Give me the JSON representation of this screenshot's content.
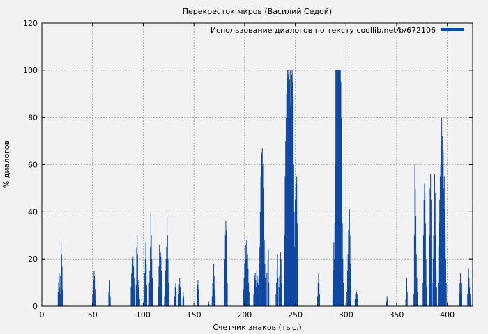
{
  "chart_data": {
    "type": "bar",
    "title": "Перекресток миров (Василий Седой)",
    "xlabel": "Счетчик знаков (тыс.)",
    "ylabel": "% диалогов",
    "xlim": [
      0,
      425
    ],
    "ylim": [
      0,
      120
    ],
    "xticks": [
      0,
      50,
      100,
      150,
      200,
      250,
      300,
      350,
      400
    ],
    "yticks": [
      0,
      20,
      40,
      60,
      80,
      100,
      120
    ],
    "grid": true,
    "legend_position": "top-right",
    "series_color": "#0d47a1",
    "series": [
      {
        "name": "Использование диалогов по тексту coollib.net/b/672106",
        "points": [
          [
            16,
            6
          ],
          [
            16.5,
            10
          ],
          [
            17,
            14
          ],
          [
            17.5,
            8
          ],
          [
            18,
            13
          ],
          [
            18.5,
            5
          ],
          [
            19,
            27
          ],
          [
            19.5,
            22
          ],
          [
            20,
            17
          ],
          [
            20.5,
            7
          ],
          [
            50,
            5
          ],
          [
            51,
            11
          ],
          [
            51.5,
            15
          ],
          [
            52,
            13
          ],
          [
            52.5,
            7
          ],
          [
            53,
            3
          ],
          [
            66,
            6
          ],
          [
            66.5,
            9
          ],
          [
            67,
            11
          ],
          [
            67.5,
            4
          ],
          [
            88,
            8
          ],
          [
            88.5,
            14
          ],
          [
            89,
            18
          ],
          [
            89.5,
            20
          ],
          [
            90,
            21
          ],
          [
            90.5,
            17
          ],
          [
            91,
            12
          ],
          [
            91.5,
            7
          ],
          [
            93,
            9
          ],
          [
            93.5,
            25
          ],
          [
            94,
            30
          ],
          [
            94.5,
            22
          ],
          [
            95,
            11
          ],
          [
            95.5,
            8
          ],
          [
            96,
            5
          ],
          [
            96.5,
            3
          ],
          [
            101,
            6
          ],
          [
            101.5,
            14
          ],
          [
            102,
            20
          ],
          [
            102.5,
            27
          ],
          [
            103,
            18
          ],
          [
            103.5,
            9
          ],
          [
            106,
            10
          ],
          [
            106.5,
            15
          ],
          [
            107,
            25
          ],
          [
            107.5,
            40
          ],
          [
            108,
            30
          ],
          [
            108.5,
            20
          ],
          [
            109,
            12
          ],
          [
            115,
            8
          ],
          [
            115.5,
            17
          ],
          [
            116,
            26
          ],
          [
            116.5,
            25
          ],
          [
            117,
            23
          ],
          [
            117.5,
            21
          ],
          [
            118,
            15
          ],
          [
            118.5,
            8
          ],
          [
            121,
            4
          ],
          [
            121.5,
            10
          ],
          [
            122,
            15
          ],
          [
            122.5,
            20
          ],
          [
            123,
            25
          ],
          [
            123.5,
            38
          ],
          [
            124,
            30
          ],
          [
            124.5,
            20
          ],
          [
            125,
            10
          ],
          [
            131,
            4
          ],
          [
            131.5,
            8
          ],
          [
            132,
            10
          ],
          [
            132.5,
            6
          ],
          [
            135,
            5
          ],
          [
            135.5,
            9
          ],
          [
            136,
            12
          ],
          [
            136.5,
            8
          ],
          [
            137,
            5
          ],
          [
            139,
            3
          ],
          [
            139.5,
            6
          ],
          [
            140,
            4
          ],
          [
            153,
            5
          ],
          [
            153.5,
            9
          ],
          [
            154,
            11
          ],
          [
            154.5,
            7
          ],
          [
            155,
            4
          ],
          [
            164,
            1
          ],
          [
            164.5,
            2
          ],
          [
            165,
            1
          ],
          [
            168,
            4
          ],
          [
            168.5,
            10
          ],
          [
            169,
            15
          ],
          [
            169.5,
            18
          ],
          [
            170,
            13
          ],
          [
            170.5,
            7
          ],
          [
            171,
            4
          ],
          [
            180,
            8
          ],
          [
            180.5,
            20
          ],
          [
            181,
            30
          ],
          [
            181.5,
            36
          ],
          [
            182,
            32
          ],
          [
            182.5,
            20
          ],
          [
            183,
            10
          ],
          [
            199,
            7
          ],
          [
            199.5,
            12
          ],
          [
            200,
            18
          ],
          [
            200.5,
            22
          ],
          [
            201,
            26
          ],
          [
            201.5,
            20
          ],
          [
            202,
            28
          ],
          [
            202.5,
            30
          ],
          [
            203,
            22
          ],
          [
            203.5,
            16
          ],
          [
            204,
            10
          ],
          [
            204.5,
            6
          ],
          [
            209,
            5
          ],
          [
            209.5,
            10
          ],
          [
            210,
            13
          ],
          [
            210.5,
            14
          ],
          [
            211,
            11
          ],
          [
            211.5,
            8
          ],
          [
            212,
            15
          ],
          [
            212.5,
            13
          ],
          [
            213,
            10
          ],
          [
            213.5,
            9
          ],
          [
            214,
            12
          ],
          [
            214.5,
            18
          ],
          [
            215,
            25
          ],
          [
            215.5,
            40
          ],
          [
            216,
            55
          ],
          [
            216.5,
            62
          ],
          [
            217,
            65
          ],
          [
            217.5,
            67
          ],
          [
            218,
            60
          ],
          [
            218.5,
            50
          ],
          [
            219,
            40
          ],
          [
            219.5,
            28
          ],
          [
            220,
            18
          ],
          [
            220.5,
            12
          ],
          [
            221,
            6
          ],
          [
            222,
            14
          ],
          [
            223,
            20
          ],
          [
            223.5,
            24
          ],
          [
            224,
            10
          ],
          [
            231,
            5
          ],
          [
            231.5,
            10
          ],
          [
            232,
            15
          ],
          [
            232.5,
            22
          ],
          [
            233,
            12
          ],
          [
            234,
            8
          ],
          [
            234.5,
            13
          ],
          [
            235,
            18
          ],
          [
            235.5,
            23
          ],
          [
            236,
            20
          ],
          [
            236.5,
            10
          ],
          [
            239,
            10
          ],
          [
            239.5,
            30
          ],
          [
            240,
            55
          ],
          [
            240.5,
            70
          ],
          [
            241,
            80
          ],
          [
            241.5,
            90
          ],
          [
            242,
            95
          ],
          [
            242.5,
            100
          ],
          [
            243,
            98
          ],
          [
            243.5,
            100
          ],
          [
            244,
            92
          ],
          [
            244.5,
            96
          ],
          [
            245,
            100
          ],
          [
            245.5,
            85
          ],
          [
            246,
            94
          ],
          [
            246.5,
            98
          ],
          [
            247,
            100
          ],
          [
            247.5,
            95
          ],
          [
            248,
            90
          ],
          [
            248.5,
            60
          ],
          [
            249,
            40
          ],
          [
            249.5,
            25
          ],
          [
            250,
            45
          ],
          [
            250.5,
            50
          ],
          [
            251,
            52
          ],
          [
            251.5,
            55
          ],
          [
            252,
            35
          ],
          [
            252.5,
            20
          ],
          [
            272,
            4
          ],
          [
            272.5,
            10
          ],
          [
            273,
            14
          ],
          [
            273.5,
            10
          ],
          [
            274,
            5
          ],
          [
            287,
            5
          ],
          [
            287.5,
            15
          ],
          [
            288,
            27
          ],
          [
            288.5,
            20
          ],
          [
            289,
            35
          ],
          [
            289.5,
            60
          ],
          [
            290,
            100
          ],
          [
            290.5,
            100
          ],
          [
            291,
            100
          ],
          [
            291.5,
            100
          ],
          [
            292,
            100
          ],
          [
            292.5,
            100
          ],
          [
            293,
            100
          ],
          [
            293.5,
            100
          ],
          [
            294,
            100
          ],
          [
            294.5,
            100
          ],
          [
            295,
            95
          ],
          [
            295.5,
            80
          ],
          [
            296,
            60
          ],
          [
            296.5,
            35
          ],
          [
            297,
            20
          ],
          [
            297.5,
            10
          ],
          [
            301,
            6
          ],
          [
            301.5,
            15
          ],
          [
            302,
            22
          ],
          [
            302.5,
            32
          ],
          [
            303,
            38
          ],
          [
            303.5,
            41
          ],
          [
            304,
            30
          ],
          [
            304.5,
            18
          ],
          [
            305,
            10
          ],
          [
            309,
            3
          ],
          [
            309.5,
            5
          ],
          [
            310,
            7
          ],
          [
            310.5,
            6
          ],
          [
            311,
            5
          ],
          [
            311.5,
            3
          ],
          [
            340,
            2
          ],
          [
            340.5,
            4
          ],
          [
            341,
            3
          ],
          [
            359,
            3
          ],
          [
            359.5,
            8
          ],
          [
            360,
            12
          ],
          [
            360.5,
            6
          ],
          [
            367,
            5
          ],
          [
            367.5,
            30
          ],
          [
            368,
            60
          ],
          [
            368.5,
            50
          ],
          [
            369,
            38
          ],
          [
            369.5,
            22
          ],
          [
            370,
            12
          ],
          [
            370.5,
            6
          ],
          [
            376,
            10
          ],
          [
            376.5,
            30
          ],
          [
            377,
            45
          ],
          [
            377.5,
            52
          ],
          [
            378,
            48
          ],
          [
            378.5,
            35
          ],
          [
            379,
            20
          ],
          [
            379.5,
            8
          ],
          [
            382,
            10
          ],
          [
            382.5,
            30
          ],
          [
            383,
            50
          ],
          [
            383.5,
            56
          ],
          [
            384,
            45
          ],
          [
            384.5,
            20
          ],
          [
            385,
            10
          ],
          [
            386,
            20
          ],
          [
            386.5,
            30
          ],
          [
            387,
            42
          ],
          [
            387.5,
            56
          ],
          [
            388,
            48
          ],
          [
            388.5,
            30
          ],
          [
            389,
            15
          ],
          [
            389.5,
            8
          ],
          [
            391,
            10
          ],
          [
            391.5,
            25
          ],
          [
            392,
            35
          ],
          [
            392.5,
            45
          ],
          [
            393,
            55
          ],
          [
            393.5,
            60
          ],
          [
            394,
            70
          ],
          [
            394.5,
            80
          ],
          [
            395,
            72
          ],
          [
            395.5,
            60
          ],
          [
            396,
            66
          ],
          [
            396.5,
            50
          ],
          [
            397,
            55
          ],
          [
            397.5,
            41
          ],
          [
            398,
            30
          ],
          [
            398.5,
            20
          ],
          [
            399,
            10
          ],
          [
            412,
            5
          ],
          [
            412.5,
            10
          ],
          [
            413,
            14
          ],
          [
            413.5,
            10
          ],
          [
            414,
            5
          ],
          [
            420,
            5
          ],
          [
            420.5,
            10
          ],
          [
            421,
            16
          ],
          [
            421.5,
            12
          ],
          [
            422,
            8
          ],
          [
            422.5,
            5
          ],
          [
            423,
            3
          ]
        ]
      }
    ]
  }
}
